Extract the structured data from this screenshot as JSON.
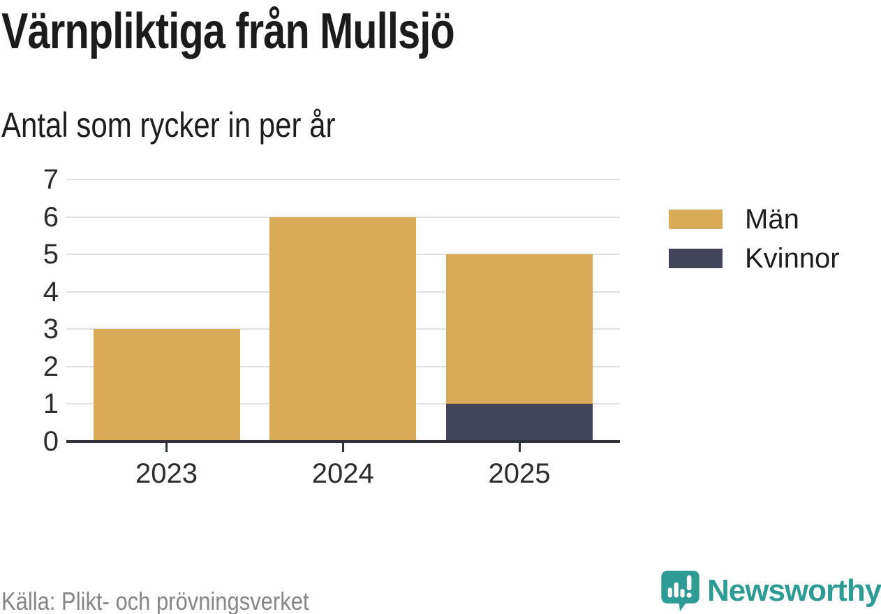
{
  "header": {
    "title": "Värnpliktiga från Mullsjö",
    "subtitle": "Antal som rycker in per år"
  },
  "chart_data": {
    "type": "bar",
    "stacked": true,
    "title": "Värnpliktiga från Mullsjö",
    "subtitle": "Antal som rycker in per år",
    "categories": [
      "2023",
      "2024",
      "2025"
    ],
    "series": [
      {
        "name": "Män",
        "color": "#d9ab57",
        "values": [
          3,
          6,
          4
        ]
      },
      {
        "name": "Kvinnor",
        "color": "#42455a",
        "values": [
          0,
          0,
          1
        ]
      }
    ],
    "totals": [
      3,
      6,
      5
    ],
    "xlabel": "",
    "ylabel": "",
    "ylim": [
      0,
      7
    ],
    "yticks": [
      0,
      1,
      2,
      3,
      4,
      5,
      6,
      7
    ],
    "grid": true,
    "legend_position": "right"
  },
  "footer": {
    "source": "Källa: Plikt- och prövningsverket",
    "brand": "Newsworthy"
  },
  "colors": {
    "men": "#d9ab57",
    "women": "#42455a",
    "brand_teal": "#2e9c94",
    "axis": "#2f3237",
    "grid": "#e1e1e1",
    "source_text": "#868686"
  }
}
